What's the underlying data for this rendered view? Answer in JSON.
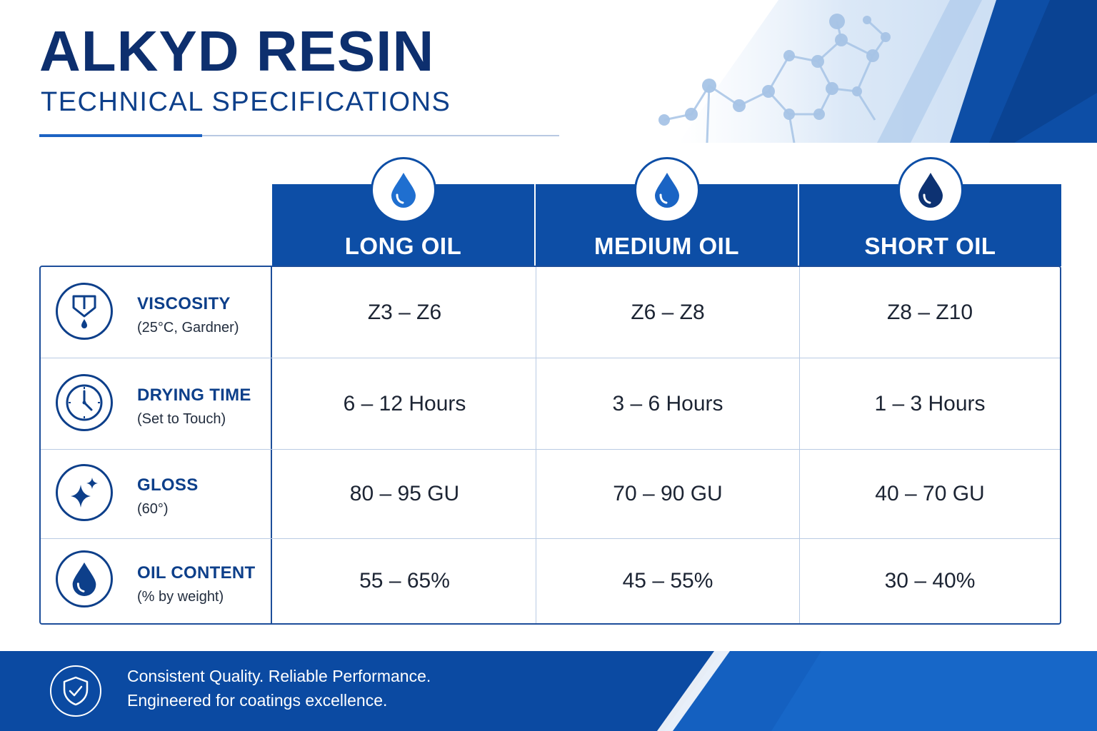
{
  "header": {
    "title": "ALKYD RESIN",
    "subtitle": "TECHNICAL SPECIFICATIONS"
  },
  "columns": [
    {
      "label": "LONG OIL",
      "icon": "light-droplet-icon",
      "icon_color": "#1f6fd0"
    },
    {
      "label": "MEDIUM OIL",
      "icon": "medium-droplet-icon",
      "icon_color": "#1a64c4"
    },
    {
      "label": "SHORT OIL",
      "icon": "dark-droplet-icon",
      "icon_color": "#0d3272"
    }
  ],
  "rows": [
    {
      "title": "VISCOSITY",
      "subtitle": "(25°C, Gardner)",
      "icon": "viscosity-cup-icon",
      "values": [
        "Z3 – Z6",
        "Z6 – Z8",
        "Z8 – Z10"
      ]
    },
    {
      "title": "DRYING TIME",
      "subtitle": "(Set to Touch)",
      "icon": "clock-icon",
      "values": [
        "6 – 12 Hours",
        "3 – 6 Hours",
        "1 – 3 Hours"
      ]
    },
    {
      "title": "GLOSS",
      "subtitle": "(60°)",
      "icon": "sparkle-icon",
      "values": [
        "80 – 95 GU",
        "70 – 90 GU",
        "40 – 70 GU"
      ]
    },
    {
      "title": "OIL CONTENT",
      "subtitle": "(% by weight)",
      "icon": "droplet-icon",
      "values": [
        "55 – 65%",
        "45 – 55%",
        "30 – 40%"
      ]
    }
  ],
  "footer": {
    "line1": "Consistent Quality. Reliable Performance.",
    "line2": "Engineered for coatings excellence.",
    "icon": "shield-check-icon"
  },
  "colors": {
    "primary": "#0d4ea6",
    "navy": "#0d2f6e",
    "accent": "#1c63c3"
  }
}
